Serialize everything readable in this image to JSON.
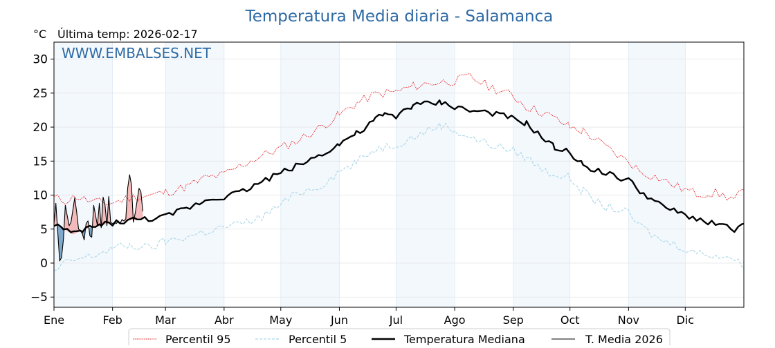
{
  "chart_data": {
    "type": "line",
    "title": "Temperatura Media diaria - Salamanca",
    "unit_label": "°C",
    "last_temp_text": "Última temp: 2026-02-17",
    "watermark": "WWW.EMBALSES.NET",
    "x_range_days": [
      0,
      365
    ],
    "ylim": [
      -6.5,
      32.5
    ],
    "y_ticks": [
      -5,
      0,
      5,
      10,
      15,
      20,
      25,
      30
    ],
    "y_tick_labels": [
      "−5",
      "0",
      "5",
      "10",
      "15",
      "20",
      "25",
      "30"
    ],
    "months": [
      {
        "label": "Ene",
        "start_day": 0
      },
      {
        "label": "Feb",
        "start_day": 31
      },
      {
        "label": "Mar",
        "start_day": 59
      },
      {
        "label": "Abr",
        "start_day": 90
      },
      {
        "label": "May",
        "start_day": 120
      },
      {
        "label": "Jun",
        "start_day": 151
      },
      {
        "label": "Jul",
        "start_day": 181
      },
      {
        "label": "Ago",
        "start_day": 212
      },
      {
        "label": "Sep",
        "start_day": 243
      },
      {
        "label": "Oct",
        "start_day": 273
      },
      {
        "label": "Nov",
        "start_day": 304
      },
      {
        "label": "Dic",
        "start_day": 334
      }
    ],
    "grid": true,
    "legend_position": "bottom-center",
    "series": [
      {
        "name": "Percentil 95",
        "color": "#e8191c",
        "style": "dotted",
        "x": [
          0,
          6,
          12,
          20,
          30,
          40,
          50,
          59,
          70,
          80,
          90,
          100,
          110,
          120,
          130,
          140,
          151,
          160,
          170,
          181,
          190,
          200,
          212,
          220,
          230,
          243,
          250,
          260,
          273,
          280,
          290,
          300,
          304,
          310,
          320,
          330,
          340,
          350,
          360,
          365
        ],
        "y": [
          9.6,
          9.2,
          9.8,
          9.0,
          8.8,
          9.6,
          9.9,
          10.4,
          11.2,
          12.5,
          13.0,
          14.5,
          15.8,
          16.9,
          18.2,
          19.8,
          21.8,
          23.5,
          24.8,
          25.2,
          26.0,
          26.5,
          26.8,
          27.4,
          26.0,
          24.6,
          23.0,
          22.0,
          20.0,
          19.4,
          17.5,
          15.5,
          15.0,
          13.5,
          12.5,
          11.2,
          10.2,
          10.3,
          9.4,
          10.8
        ]
      },
      {
        "name": "Percentil 5",
        "color": "#a9d7e6",
        "style": "dashed",
        "x": [
          0,
          6,
          12,
          20,
          31,
          40,
          50,
          59,
          70,
          80,
          90,
          100,
          110,
          120,
          130,
          140,
          151,
          160,
          170,
          181,
          190,
          200,
          205,
          212,
          220,
          230,
          243,
          250,
          260,
          273,
          280,
          290,
          300,
          304,
          310,
          320,
          330,
          340,
          350,
          360,
          365
        ],
        "y": [
          -1.4,
          0.0,
          0.5,
          1.0,
          2.2,
          2.6,
          2.2,
          3.2,
          3.8,
          4.6,
          5.3,
          5.8,
          6.8,
          8.6,
          10.5,
          11.2,
          13.5,
          14.8,
          16.8,
          17.5,
          18.5,
          19.8,
          20.3,
          19.5,
          18.5,
          17.5,
          16.5,
          15.5,
          13.5,
          12.5,
          10.5,
          8.4,
          7.8,
          7.2,
          5.5,
          3.5,
          2.6,
          1.5,
          1.2,
          0.7,
          -0.9
        ]
      },
      {
        "name": "Temperatura Mediana",
        "color": "#000000",
        "style": "bold",
        "x": [
          0,
          5,
          10,
          15,
          20,
          25,
          31,
          40,
          50,
          59,
          65,
          70,
          75,
          80,
          90,
          100,
          110,
          120,
          130,
          140,
          151,
          155,
          160,
          165,
          170,
          175,
          181,
          185,
          190,
          200,
          205,
          212,
          220,
          230,
          243,
          250,
          260,
          265,
          273,
          280,
          290,
          300,
          304,
          310,
          320,
          330,
          340,
          350,
          360,
          365
        ],
        "y": [
          5.8,
          5.0,
          4.2,
          4.8,
          5.3,
          5.6,
          5.9,
          6.3,
          6.5,
          6.8,
          7.5,
          8.0,
          8.6,
          9.3,
          9.8,
          10.6,
          12.0,
          13.3,
          14.5,
          15.8,
          17.5,
          18.3,
          19.0,
          19.8,
          21.2,
          21.8,
          21.5,
          22.5,
          23.2,
          23.5,
          23.6,
          23.0,
          22.4,
          22.2,
          21.2,
          20.5,
          18.0,
          17.0,
          16.2,
          14.4,
          13.4,
          12.4,
          12.2,
          10.6,
          8.6,
          7.4,
          6.5,
          5.8,
          5.0,
          5.8
        ]
      },
      {
        "name": "T. Media 2026",
        "color": "#000000",
        "style": "thin",
        "x": [
          0,
          1,
          2,
          3,
          4,
          5,
          6,
          7,
          8,
          9,
          10,
          11,
          12,
          13,
          14,
          15,
          16,
          17,
          18,
          19,
          20,
          21,
          22,
          23,
          24,
          25,
          26,
          27,
          28,
          29,
          30,
          31,
          32,
          33,
          34,
          35,
          36,
          37,
          38,
          39,
          40,
          41,
          42,
          43,
          44,
          45,
          46,
          47
        ],
        "y": [
          5.8,
          8.8,
          4.5,
          0.3,
          0.8,
          3.5,
          8.5,
          7.0,
          5.5,
          6.0,
          7.8,
          9.6,
          7.5,
          5.0,
          4.8,
          4.3,
          3.4,
          5.8,
          6.2,
          4.0,
          3.8,
          8.5,
          7.0,
          5.5,
          8.8,
          5.2,
          9.7,
          8.5,
          5.5,
          9.8,
          6.0,
          5.8,
          6.0,
          5.8,
          6.2,
          5.8,
          6.4,
          6.2,
          6.5,
          11.0,
          13.0,
          11.5,
          6.0,
          7.4,
          9.2,
          11.0,
          10.5,
          7.6
        ]
      }
    ]
  }
}
